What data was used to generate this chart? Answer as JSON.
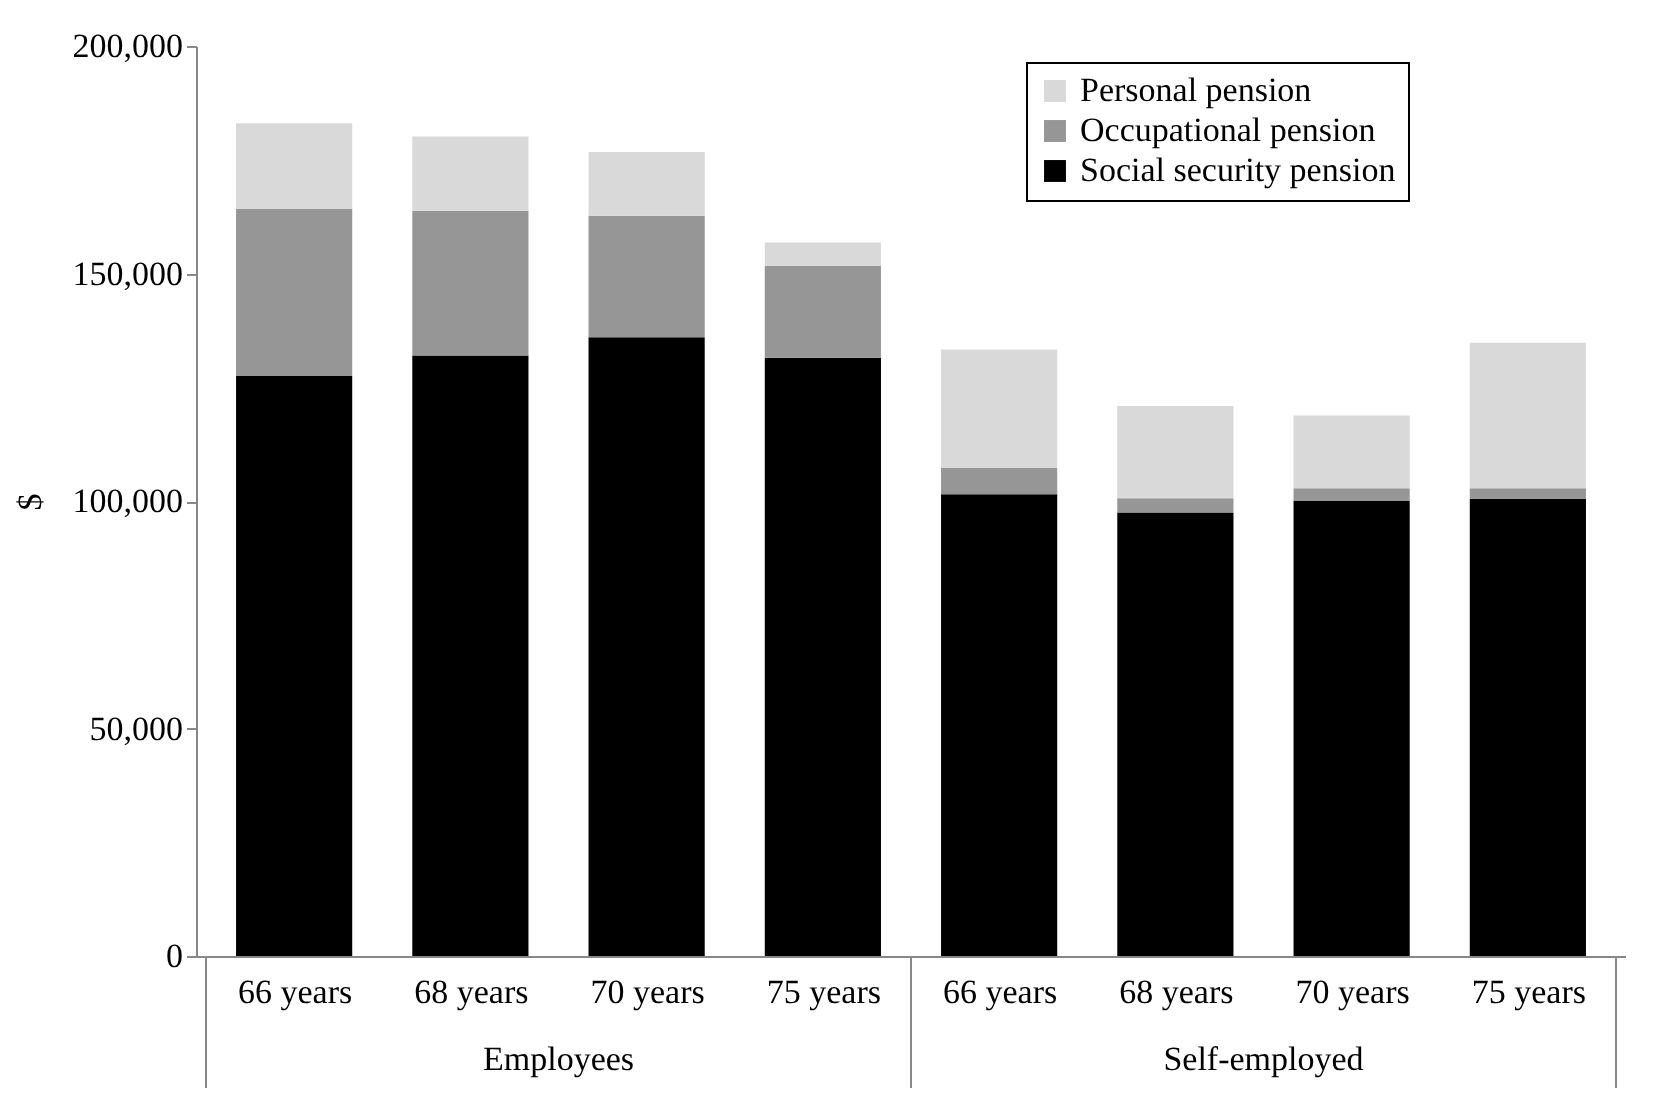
{
  "chart_data": {
    "type": "bar",
    "stacked": true,
    "ylabel": "$",
    "categories": [
      "66 years",
      "68 years",
      "70 years",
      "75 years",
      "66 years",
      "68 years",
      "70 years",
      "75 years"
    ],
    "annotations": [
      "Employees",
      "Self-employed"
    ],
    "series": [
      {
        "name": "Social security pension",
        "color": "#000000",
        "values": [
          127500,
          132000,
          136000,
          131500,
          101500,
          97500,
          100000,
          100500
        ]
      },
      {
        "name": "Occupational pension",
        "color": "#969696",
        "values": [
          36700,
          31800,
          26700,
          20200,
          5800,
          3100,
          2800,
          2300
        ]
      },
      {
        "name": "Personal pension",
        "color": "#d9d9d9",
        "values": [
          18800,
          16300,
          14000,
          5100,
          26000,
          20300,
          16000,
          32000
        ]
      }
    ],
    "ylim": [
      0,
      200000
    ],
    "yticks": [
      0,
      {
        "value": 50000,
        "label": "50,000"
      },
      {
        "value": 100000,
        "label": "100,000"
      },
      {
        "value": 150000,
        "label": "150,000"
      },
      {
        "value": 200000,
        "label": "200,000"
      }
    ],
    "grid": false,
    "legend": "top right"
  }
}
